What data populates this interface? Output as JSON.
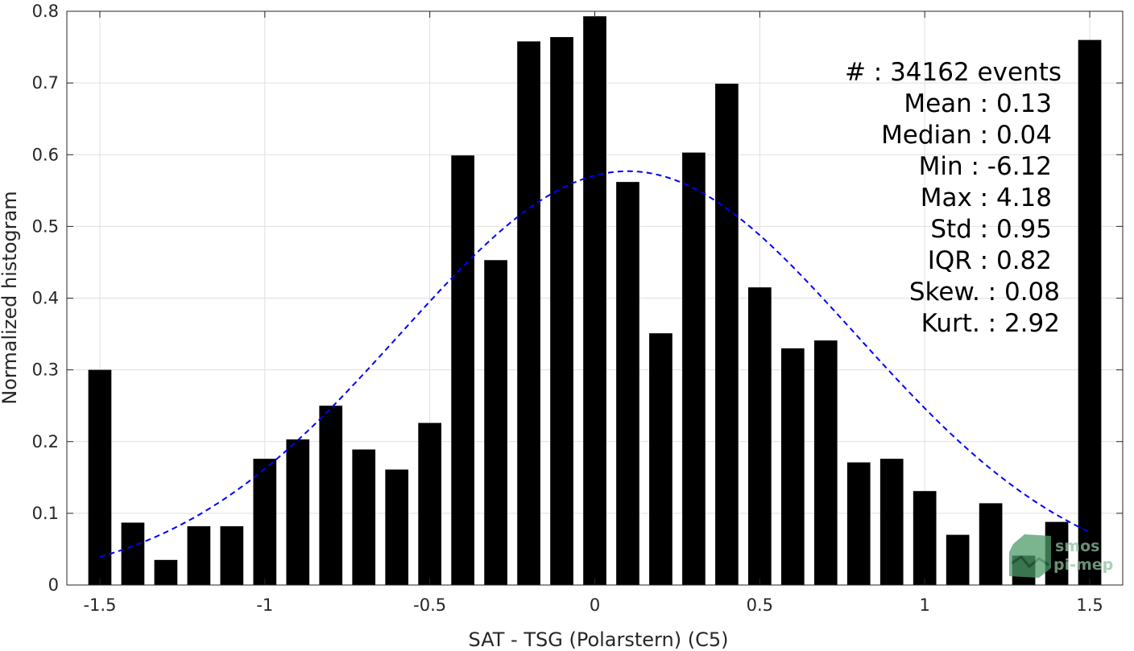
{
  "chart_data": {
    "type": "bar",
    "xlabel": "SAT - TSG (Polarstern) (C5)",
    "ylabel": "Normalized histogram",
    "xlim": [
      -1.6,
      1.6
    ],
    "ylim": [
      0,
      0.8
    ],
    "xticks": [
      "-1.5",
      "-1",
      "-0.5",
      "0",
      "0.5",
      "1",
      "1.5"
    ],
    "yticks": [
      "0",
      "0.1",
      "0.2",
      "0.3",
      "0.4",
      "0.5",
      "0.6",
      "0.7",
      "0.8"
    ],
    "grid": true,
    "bar_color": "#000000",
    "fit_color": "#0000ff",
    "bars": {
      "x": [
        -1.5,
        -1.4,
        -1.3,
        -1.2,
        -1.1,
        -1.0,
        -0.9,
        -0.8,
        -0.7,
        -0.6,
        -0.5,
        -0.4,
        -0.3,
        -0.2,
        -0.1,
        0.0,
        0.1,
        0.2,
        0.3,
        0.4,
        0.5,
        0.6,
        0.7,
        0.8,
        0.9,
        1.0,
        1.1,
        1.2,
        1.3,
        1.4,
        1.5
      ],
      "values": [
        0.3,
        0.087,
        0.035,
        0.082,
        0.082,
        0.176,
        0.203,
        0.25,
        0.189,
        0.161,
        0.226,
        0.599,
        0.453,
        0.758,
        0.764,
        0.793,
        0.562,
        0.351,
        0.603,
        0.699,
        0.415,
        0.33,
        0.341,
        0.171,
        0.176,
        0.131,
        0.07,
        0.114,
        0.041,
        0.088,
        0.76
      ]
    },
    "gaussian_fit": {
      "mean": 0.1,
      "std": 0.69,
      "peak": 0.577,
      "x_range": [
        -1.5,
        1.5
      ],
      "style": "dashed"
    },
    "annotations": [
      "#  : 34162 events",
      "Mean : 0.13",
      "Median : 0.04",
      "Min : -6.12",
      "Max : 4.18",
      "Std : 0.95",
      "IQR : 0.82",
      "Skew. : 0.08",
      "Kurt. : 2.92"
    ]
  },
  "logo": {
    "line1": "smos",
    "line2": "pi-mep"
  }
}
